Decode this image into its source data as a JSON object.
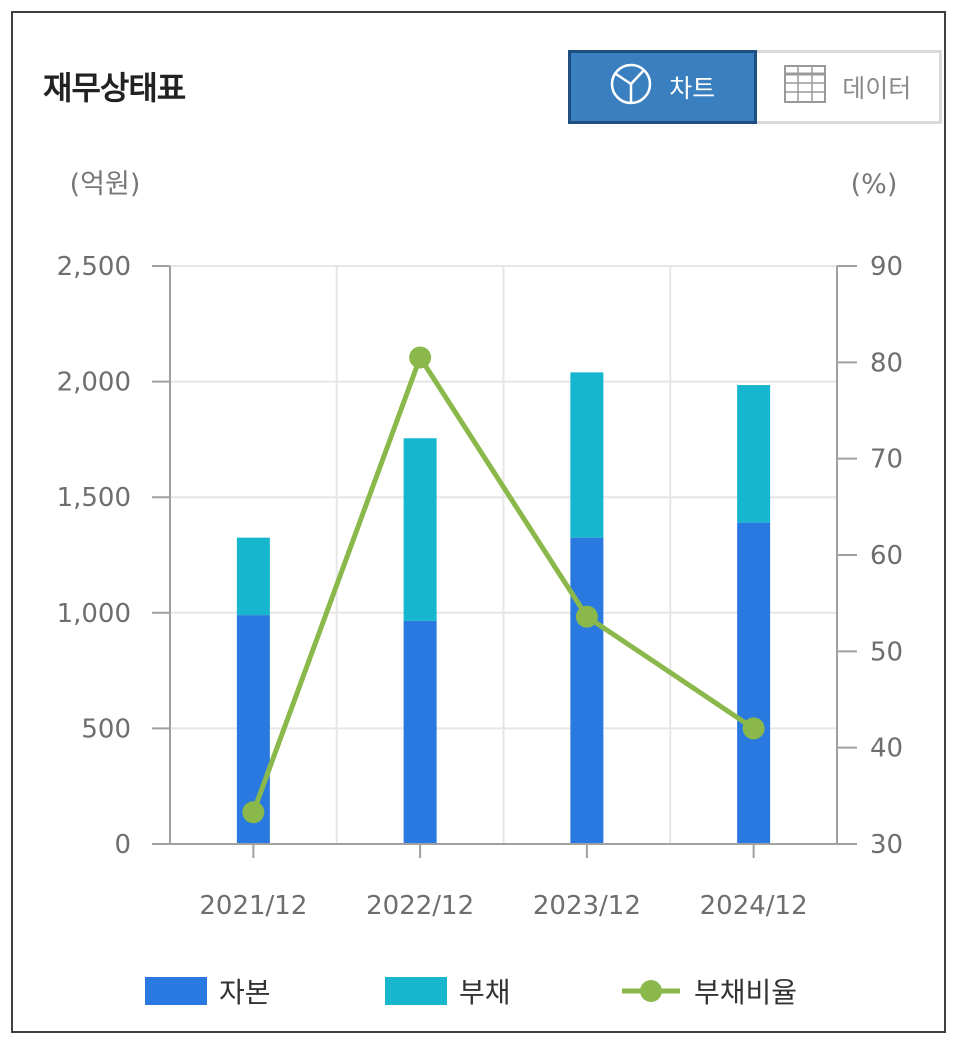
{
  "header": {
    "title": "재무상태표",
    "chart_button_label": "차트",
    "data_button_label": "데이터"
  },
  "icons": {
    "chart_icon": "pie-chart-icon",
    "data_icon": "table-grid-icon"
  },
  "colors": {
    "capital": "#2a79e0",
    "debt": "#17b6cf",
    "ratio": "#8ab84a",
    "active_button": "#3a7fc0"
  },
  "chart_data": {
    "type": "bar",
    "stacked": true,
    "categories": [
      "2021/12",
      "2022/12",
      "2023/12",
      "2024/12"
    ],
    "series": [
      {
        "name": "자본",
        "type": "bar",
        "axis": "left",
        "values": [
          990,
          965,
          1325,
          1390
        ]
      },
      {
        "name": "부채",
        "type": "bar",
        "axis": "left",
        "values": [
          335,
          790,
          715,
          595
        ]
      },
      {
        "name": "부채비율",
        "type": "line",
        "axis": "right",
        "values": [
          33.3,
          80.5,
          53.6,
          42.0
        ]
      }
    ],
    "y_left": {
      "unit_label": "(억원)",
      "min": 0,
      "max": 2500,
      "ticks": [
        0,
        500,
        1000,
        1500,
        2000,
        2500
      ],
      "tick_labels": [
        "0",
        "500",
        "1,000",
        "1,500",
        "2,000",
        "2,500"
      ]
    },
    "y_right": {
      "unit_label": "(%)",
      "min": 30,
      "max": 90,
      "ticks": [
        30,
        40,
        50,
        60,
        70,
        80,
        90
      ],
      "tick_labels": [
        "30",
        "40",
        "50",
        "60",
        "70",
        "80",
        "90"
      ]
    },
    "grid": true,
    "legend_position": "bottom"
  }
}
